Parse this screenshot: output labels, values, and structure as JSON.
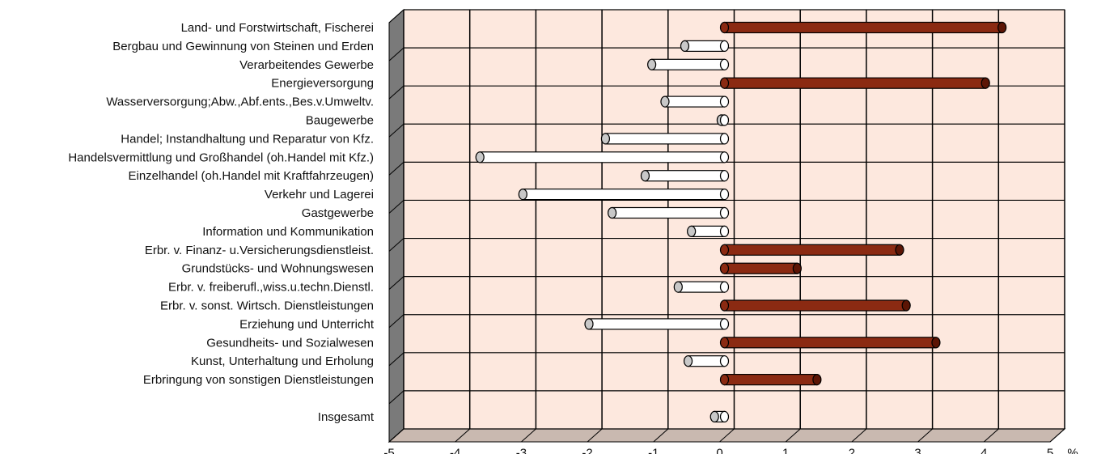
{
  "chart_data": {
    "type": "bar",
    "orientation": "horizontal",
    "three_d": true,
    "categories": [
      "Land- und Forstwirtschaft, Fischerei",
      "Bergbau und Gewinnung von Steinen und Erden",
      "Verarbeitendes Gewerbe",
      "Energieversorgung",
      "Wasserversorgung;Abw.,Abf.ents.,Bes.v.Umweltv.",
      "Baugewerbe",
      "Handel; Instandhaltung und Reparatur von Kfz.",
      "Handelsvermittlung und Großhandel (oh.Handel mit Kfz.)",
      "Einzelhandel (oh.Handel mit Kraftfahrzeugen)",
      "Verkehr und Lagerei",
      "Gastgewerbe",
      "Information und Kommunikation",
      "Erbr. v. Finanz- u.Versicherungsdienstleist.",
      "Grundstücks- und Wohnungswesen",
      "Erbr. v. freiberufl.,wiss.u.techn.Dienstl.",
      "Erbr. v. sonst. Wirtsch. Dienstleistungen",
      "Erziehung und Unterricht",
      "Gesundheits- und Sozialwesen",
      "Kunst, Unterhaltung und Erholung",
      "Erbringung von sonstigen Dienstleistungen",
      "",
      "Insgesamt"
    ],
    "values": [
      4.2,
      -0.6,
      -1.1,
      3.95,
      -0.9,
      -0.05,
      -1.8,
      -3.7,
      -1.2,
      -3.05,
      -1.7,
      -0.5,
      2.65,
      1.1,
      -0.7,
      2.75,
      -2.05,
      3.2,
      -0.55,
      1.4,
      null,
      -0.15
    ],
    "xlim": [
      -5,
      5
    ],
    "xticks": [
      "-5",
      "-4",
      "-3",
      "-2",
      "-1",
      "0",
      "1",
      "2",
      "3",
      "4",
      "5"
    ],
    "xunit": "%",
    "grid": true,
    "colors": {
      "positive": "#8b2a12",
      "positive_end": "#5c1505",
      "negative": "#ffffff",
      "negative_end": "#c8c8c8",
      "back_wall": "#fde8de",
      "left_wall": "#7a7a7a",
      "floor": "#c9b9b0",
      "grid": "#000000"
    }
  }
}
